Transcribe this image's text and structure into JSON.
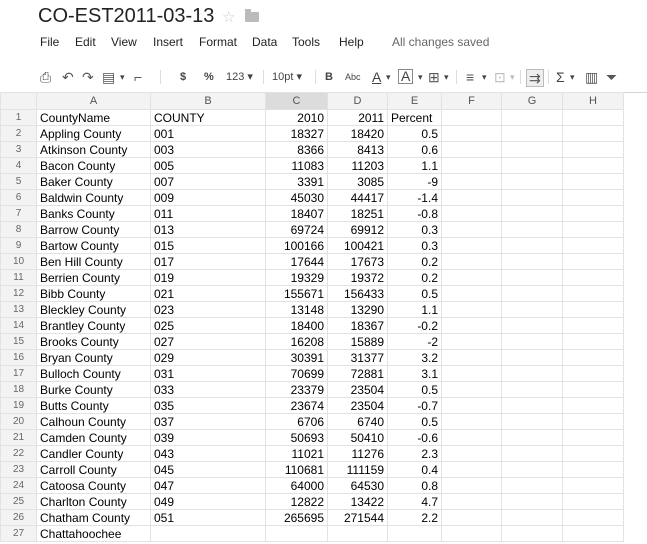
{
  "doc": {
    "title": "CO-EST2011-03-13",
    "status": "All changes saved"
  },
  "menu": [
    "File",
    "Edit",
    "View",
    "Insert",
    "Format",
    "Data",
    "Tools",
    "Help"
  ],
  "toolbar": {
    "currency": "$",
    "percent": "%",
    "number_format": "123 ▾",
    "font_size": "10pt ▾",
    "bold": "B",
    "strike": "Abc",
    "text_color": "A",
    "fill_color": "A",
    "sum": "Σ"
  },
  "columns": [
    "A",
    "B",
    "C",
    "D",
    "E",
    "F",
    "G",
    "H"
  ],
  "rows": [
    {
      "n": "1",
      "A": "CountyName",
      "B": "COUNTY",
      "C": "2010",
      "D": "2011",
      "E": "Percent"
    },
    {
      "n": "2",
      "A": "Appling County",
      "B": "001",
      "C": "18327",
      "D": "18420",
      "E": "0.5"
    },
    {
      "n": "3",
      "A": "Atkinson County",
      "B": "003",
      "C": "8366",
      "D": "8413",
      "E": "0.6"
    },
    {
      "n": "4",
      "A": "Bacon County",
      "B": "005",
      "C": "11083",
      "D": "11203",
      "E": "1.1"
    },
    {
      "n": "5",
      "A": "Baker County",
      "B": "007",
      "C": "3391",
      "D": "3085",
      "E": "-9"
    },
    {
      "n": "6",
      "A": "Baldwin County",
      "B": "009",
      "C": "45030",
      "D": "44417",
      "E": "-1.4"
    },
    {
      "n": "7",
      "A": "Banks County",
      "B": "011",
      "C": "18407",
      "D": "18251",
      "E": "-0.8"
    },
    {
      "n": "8",
      "A": "Barrow County",
      "B": "013",
      "C": "69724",
      "D": "69912",
      "E": "0.3"
    },
    {
      "n": "9",
      "A": "Bartow County",
      "B": "015",
      "C": "100166",
      "D": "100421",
      "E": "0.3"
    },
    {
      "n": "10",
      "A": "Ben Hill County",
      "B": "017",
      "C": "17644",
      "D": "17673",
      "E": "0.2"
    },
    {
      "n": "11",
      "A": "Berrien County",
      "B": "019",
      "C": "19329",
      "D": "19372",
      "E": "0.2"
    },
    {
      "n": "12",
      "A": "Bibb County",
      "B": "021",
      "C": "155671",
      "D": "156433",
      "E": "0.5"
    },
    {
      "n": "13",
      "A": "Bleckley County",
      "B": "023",
      "C": "13148",
      "D": "13290",
      "E": "1.1"
    },
    {
      "n": "14",
      "A": "Brantley County",
      "B": "025",
      "C": "18400",
      "D": "18367",
      "E": "-0.2"
    },
    {
      "n": "15",
      "A": "Brooks County",
      "B": "027",
      "C": "16208",
      "D": "15889",
      "E": "-2"
    },
    {
      "n": "16",
      "A": "Bryan County",
      "B": "029",
      "C": "30391",
      "D": "31377",
      "E": "3.2"
    },
    {
      "n": "17",
      "A": "Bulloch County",
      "B": "031",
      "C": "70699",
      "D": "72881",
      "E": "3.1"
    },
    {
      "n": "18",
      "A": "Burke County",
      "B": "033",
      "C": "23379",
      "D": "23504",
      "E": "0.5"
    },
    {
      "n": "19",
      "A": "Butts County",
      "B": "035",
      "C": "23674",
      "D": "23504",
      "E": "-0.7"
    },
    {
      "n": "20",
      "A": "Calhoun County",
      "B": "037",
      "C": "6706",
      "D": "6740",
      "E": "0.5"
    },
    {
      "n": "21",
      "A": "Camden County",
      "B": "039",
      "C": "50693",
      "D": "50410",
      "E": "-0.6"
    },
    {
      "n": "22",
      "A": "Candler County",
      "B": "043",
      "C": "11021",
      "D": "11276",
      "E": "2.3"
    },
    {
      "n": "23",
      "A": "Carroll County",
      "B": "045",
      "C": "110681",
      "D": "111159",
      "E": "0.4"
    },
    {
      "n": "24",
      "A": "Catoosa County",
      "B": "047",
      "C": "64000",
      "D": "64530",
      "E": "0.8"
    },
    {
      "n": "25",
      "A": "Charlton County",
      "B": "049",
      "C": "12822",
      "D": "13422",
      "E": "4.7"
    },
    {
      "n": "26",
      "A": "Chatham County",
      "B": "051",
      "C": "265695",
      "D": "271544",
      "E": "2.2"
    },
    {
      "n": "27",
      "A": "Chattahoochee",
      "B": "",
      "C": "",
      "D": "",
      "E": ""
    }
  ]
}
